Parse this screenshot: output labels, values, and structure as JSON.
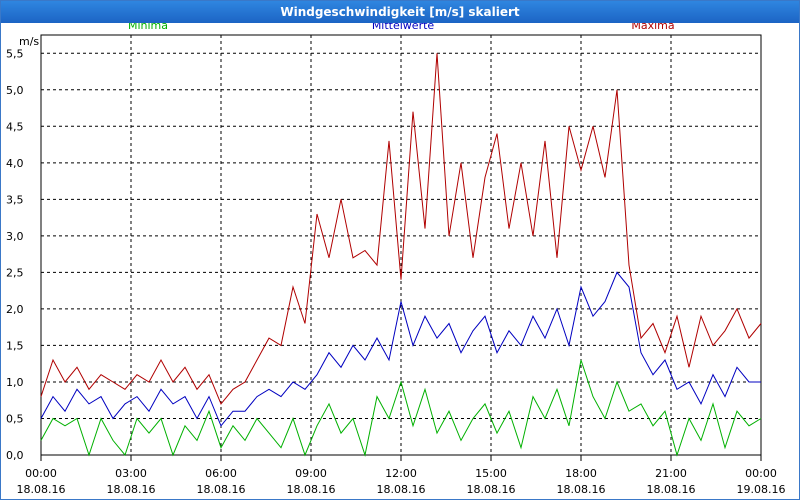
{
  "window": {
    "title": "Windgeschwindigkeit [m/s] skaliert"
  },
  "colors": {
    "minima": "#00b000",
    "mittelwerte": "#0000c0",
    "maxima": "#b00000",
    "grid": "#000000",
    "titlebar": "#2474d4"
  },
  "chart_data": {
    "type": "line",
    "title": "Windgeschwindigkeit [m/s] skaliert",
    "ylabel": "m/s",
    "xlabel": "",
    "ylim": [
      0.0,
      5.75
    ],
    "yticks": [
      "0,0",
      "0,5",
      "1,0",
      "1,5",
      "2,0",
      "2,5",
      "3,0",
      "3,5",
      "4,0",
      "4,5",
      "5,0",
      "5,5"
    ],
    "xticks": [
      {
        "time": "00:00",
        "date": "18.08.16"
      },
      {
        "time": "03:00",
        "date": "18.08.16"
      },
      {
        "time": "06:00",
        "date": "18.08.16"
      },
      {
        "time": "09:00",
        "date": "18.08.16"
      },
      {
        "time": "12:00",
        "date": "18.08.16"
      },
      {
        "time": "15:00",
        "date": "18.08.16"
      },
      {
        "time": "18:00",
        "date": "18.08.16"
      },
      {
        "time": "21:00",
        "date": "18.08.16"
      },
      {
        "time": "00:00",
        "date": "19.08.16"
      }
    ],
    "x_range_hours": [
      0,
      24
    ],
    "grid": true,
    "legend_placement": "top",
    "series": [
      {
        "name": "Minima",
        "color": "#00b000",
        "x": [
          0,
          0.4,
          0.8,
          1.2,
          1.6,
          2,
          2.4,
          2.8,
          3.2,
          3.6,
          4,
          4.4,
          4.8,
          5.2,
          5.6,
          6,
          6.4,
          6.8,
          7.2,
          7.6,
          8,
          8.4,
          8.8,
          9.2,
          9.6,
          10,
          10.4,
          10.8,
          11.2,
          11.6,
          12,
          12.4,
          12.8,
          13.2,
          13.6,
          14,
          14.4,
          14.8,
          15.2,
          15.6,
          16,
          16.4,
          16.8,
          17.2,
          17.6,
          18,
          18.4,
          18.8,
          19.2,
          19.6,
          20,
          20.4,
          20.8,
          21.2,
          21.6,
          22,
          22.4,
          22.8,
          23.2,
          23.6,
          24
        ],
        "values": [
          0.2,
          0.5,
          0.4,
          0.5,
          0.0,
          0.5,
          0.2,
          0.0,
          0.5,
          0.3,
          0.5,
          0.0,
          0.4,
          0.2,
          0.6,
          0.1,
          0.4,
          0.2,
          0.5,
          0.3,
          0.1,
          0.5,
          0.0,
          0.4,
          0.7,
          0.3,
          0.5,
          0.0,
          0.8,
          0.5,
          1.0,
          0.4,
          0.9,
          0.3,
          0.6,
          0.2,
          0.5,
          0.7,
          0.3,
          0.6,
          0.1,
          0.8,
          0.5,
          0.9,
          0.4,
          1.3,
          0.8,
          0.5,
          1.0,
          0.6,
          0.7,
          0.4,
          0.6,
          0.0,
          0.5,
          0.2,
          0.7,
          0.1,
          0.6,
          0.4,
          0.5
        ]
      },
      {
        "name": "Mittelwerte",
        "color": "#0000c0",
        "x": [
          0,
          0.4,
          0.8,
          1.2,
          1.6,
          2,
          2.4,
          2.8,
          3.2,
          3.6,
          4,
          4.4,
          4.8,
          5.2,
          5.6,
          6,
          6.4,
          6.8,
          7.2,
          7.6,
          8,
          8.4,
          8.8,
          9.2,
          9.6,
          10,
          10.4,
          10.8,
          11.2,
          11.6,
          12,
          12.4,
          12.8,
          13.2,
          13.6,
          14,
          14.4,
          14.8,
          15.2,
          15.6,
          16,
          16.4,
          16.8,
          17.2,
          17.6,
          18,
          18.4,
          18.8,
          19.2,
          19.6,
          20,
          20.4,
          20.8,
          21.2,
          21.6,
          22,
          22.4,
          22.8,
          23.2,
          23.6,
          24
        ],
        "values": [
          0.5,
          0.8,
          0.6,
          0.9,
          0.7,
          0.8,
          0.5,
          0.7,
          0.8,
          0.6,
          0.9,
          0.7,
          0.8,
          0.5,
          0.8,
          0.4,
          0.6,
          0.6,
          0.8,
          0.9,
          0.8,
          1.0,
          0.9,
          1.1,
          1.4,
          1.2,
          1.5,
          1.3,
          1.6,
          1.3,
          2.1,
          1.5,
          1.9,
          1.6,
          1.8,
          1.4,
          1.7,
          1.9,
          1.4,
          1.7,
          1.5,
          1.9,
          1.6,
          2.0,
          1.5,
          2.3,
          1.9,
          2.1,
          2.5,
          2.3,
          1.4,
          1.1,
          1.3,
          0.9,
          1.0,
          0.7,
          1.1,
          0.8,
          1.2,
          1.0,
          1.0
        ]
      },
      {
        "name": "Maxima",
        "color": "#b00000",
        "x": [
          0,
          0.4,
          0.8,
          1.2,
          1.6,
          2,
          2.4,
          2.8,
          3.2,
          3.6,
          4,
          4.4,
          4.8,
          5.2,
          5.6,
          6,
          6.4,
          6.8,
          7.2,
          7.6,
          8,
          8.4,
          8.8,
          9.2,
          9.6,
          10,
          10.4,
          10.8,
          11.2,
          11.6,
          12,
          12.4,
          12.8,
          13.2,
          13.6,
          14,
          14.4,
          14.8,
          15.2,
          15.6,
          16,
          16.4,
          16.8,
          17.2,
          17.6,
          18,
          18.4,
          18.8,
          19.2,
          19.6,
          20,
          20.4,
          20.8,
          21.2,
          21.6,
          22,
          22.4,
          22.8,
          23.2,
          23.6,
          24
        ],
        "values": [
          0.8,
          1.3,
          1.0,
          1.2,
          0.9,
          1.1,
          1.0,
          0.9,
          1.1,
          1.0,
          1.3,
          1.0,
          1.2,
          0.9,
          1.1,
          0.7,
          0.9,
          1.0,
          1.3,
          1.6,
          1.5,
          2.3,
          1.8,
          3.3,
          2.7,
          3.5,
          2.7,
          2.8,
          2.6,
          4.3,
          2.4,
          4.7,
          3.1,
          5.5,
          3.0,
          4.0,
          2.7,
          3.8,
          4.4,
          3.1,
          4.0,
          3.0,
          4.3,
          2.7,
          4.5,
          3.9,
          4.5,
          3.8,
          5.0,
          2.6,
          1.6,
          1.8,
          1.4,
          1.9,
          1.2,
          1.9,
          1.5,
          1.7,
          2.0,
          1.6,
          1.8
        ]
      }
    ]
  }
}
